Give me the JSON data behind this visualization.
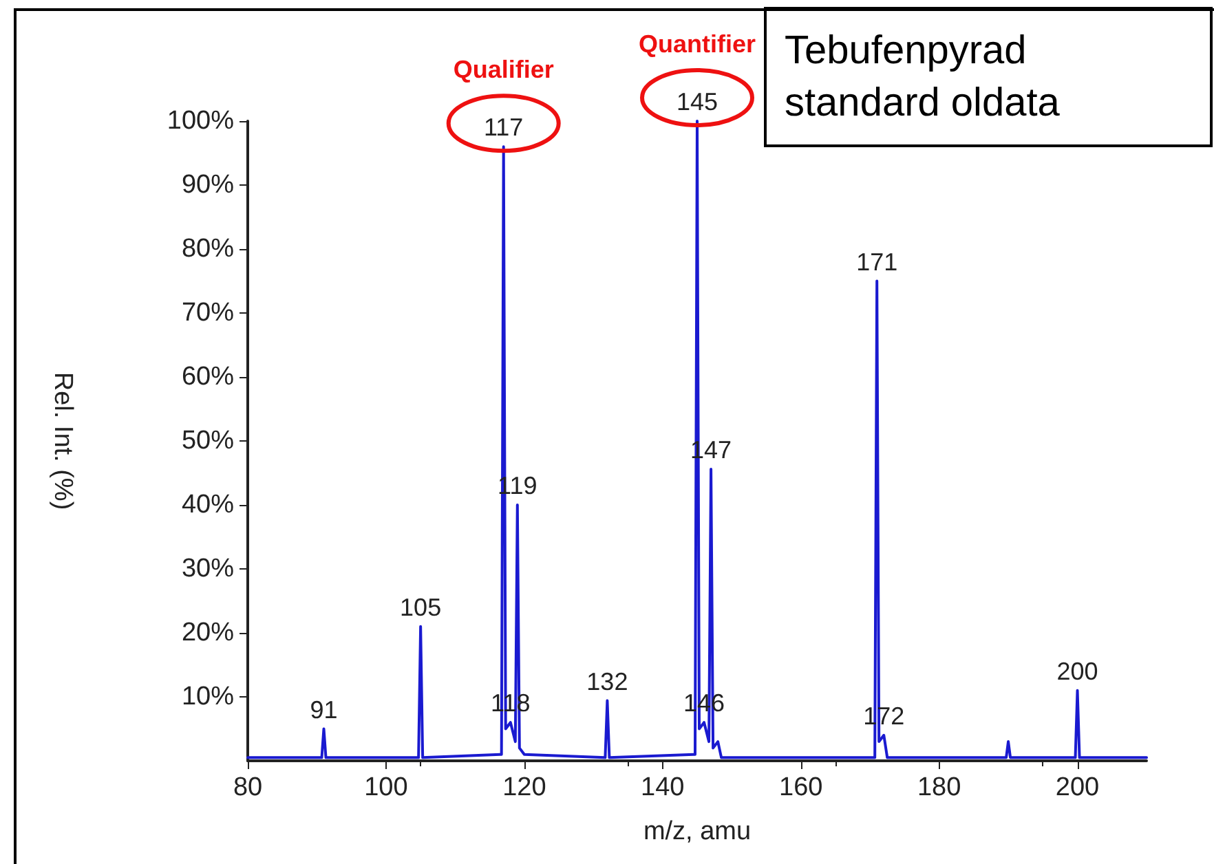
{
  "chart_data": {
    "type": "line",
    "title": "Tebufenpyrad standard oldata",
    "xlabel": "m/z, amu",
    "ylabel": "Rel. Int. (%)",
    "x": [
      80,
      90.7,
      91,
      91.3,
      104.7,
      105,
      105.3,
      116.5,
      116.7,
      117,
      117.3,
      118,
      118.7,
      119,
      119.3,
      120,
      131.7,
      132,
      132.3,
      144.5,
      144.7,
      145,
      145.3,
      146,
      146.7,
      147,
      147.3,
      148,
      148.5,
      170.7,
      171,
      171.3,
      172,
      172.5,
      189.7,
      190,
      190.3,
      199.7,
      200,
      200.3,
      210
    ],
    "series": [
      {
        "color": "#1a1ad0",
        "values": [
          0.5,
          0.5,
          5,
          0.5,
          0.5,
          21,
          0.5,
          1,
          1,
          96,
          5,
          6,
          3,
          40,
          2,
          1,
          0.5,
          9.4,
          0.5,
          1,
          1,
          100,
          5,
          6,
          3,
          45.6,
          2,
          3,
          0.5,
          0.5,
          75,
          3,
          4,
          0.5,
          0.5,
          3,
          0.5,
          0.5,
          11,
          0.5,
          0.5
        ]
      }
    ],
    "xlim": [
      80,
      210
    ],
    "xticks": [
      80,
      100,
      120,
      140,
      160,
      180,
      200
    ],
    "ylim": [
      0,
      100
    ],
    "yticks": [
      {
        "value": 10,
        "label": "10%"
      },
      {
        "value": 20,
        "label": "20%"
      },
      {
        "value": 30,
        "label": "30%"
      },
      {
        "value": 40,
        "label": "40%"
      },
      {
        "value": 50,
        "label": "50%"
      },
      {
        "value": 60,
        "label": "60%"
      },
      {
        "value": 70,
        "label": "70%"
      },
      {
        "value": 80,
        "label": "80%"
      },
      {
        "value": 90,
        "label": "90%"
      },
      {
        "value": 100,
        "label": "100%"
      }
    ],
    "grid": false,
    "marker": "none",
    "line_style": "solid",
    "annotations": [
      {
        "text": "91",
        "x": 91,
        "y": 5
      },
      {
        "text": "105",
        "x": 105,
        "y": 21
      },
      {
        "text": "117",
        "x": 117,
        "y": 96
      },
      {
        "text": "118",
        "x": 118,
        "y": 6
      },
      {
        "text": "119",
        "x": 119,
        "y": 40
      },
      {
        "text": "132",
        "x": 132,
        "y": 9.4
      },
      {
        "text": "145",
        "x": 145,
        "y": 100
      },
      {
        "text": "146",
        "x": 146,
        "y": 6
      },
      {
        "text": "147",
        "x": 147,
        "y": 45.6
      },
      {
        "text": "171",
        "x": 171,
        "y": 75
      },
      {
        "text": "172",
        "x": 172,
        "y": 4
      },
      {
        "text": "200",
        "x": 200,
        "y": 11
      },
      {
        "text": "Qualifier",
        "x": 117,
        "y": 96
      },
      {
        "text": "Quantifier",
        "x": 145,
        "y": 100
      }
    ]
  }
}
